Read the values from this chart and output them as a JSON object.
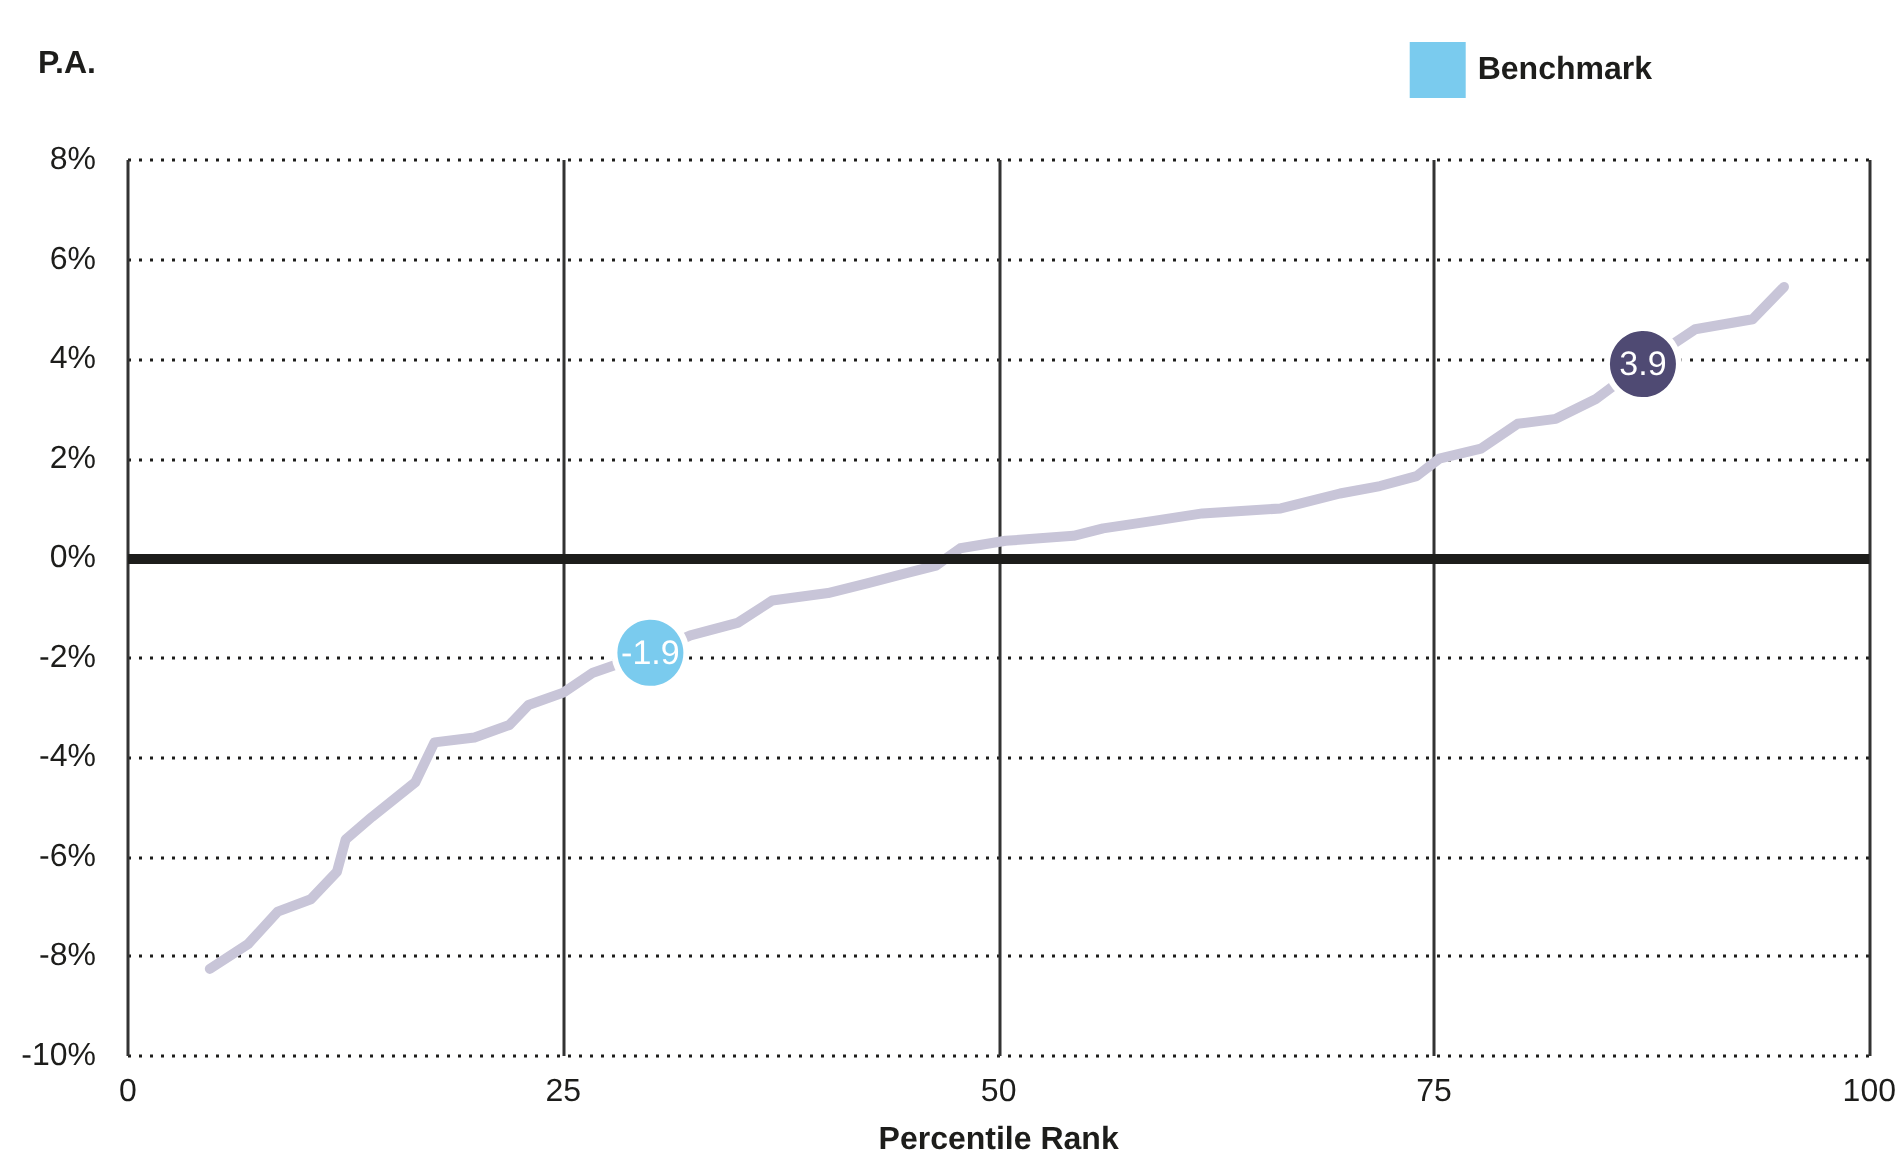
{
  "chart_data": {
    "type": "line",
    "ylabel": "P.A.",
    "xlabel": "Percentile Rank",
    "xlim": [
      0,
      100
    ],
    "xticks": [
      0,
      25,
      50,
      75,
      100
    ],
    "ylim": [
      -10,
      8
    ],
    "yticks": [
      {
        "value": -10,
        "label": "-10%"
      },
      {
        "value": -8,
        "label": "-8%"
      },
      {
        "value": -6,
        "label": "-6%"
      },
      {
        "value": -4,
        "label": "-4%"
      },
      {
        "value": -2,
        "label": "-2%"
      },
      {
        "value": 0,
        "label": "0%"
      },
      {
        "value": 2,
        "label": "2%"
      },
      {
        "value": 4,
        "label": "4%"
      },
      {
        "value": 6,
        "label": "6%"
      },
      {
        "value": 8,
        "label": "8%"
      }
    ],
    "grid": true,
    "legend": "top right",
    "line_style": "solid",
    "ref_lines": [
      {
        "axis": "y",
        "value": 0,
        "color": "#1d1d1b"
      }
    ],
    "series": [
      {
        "marker": "none",
        "color": "#c8c5d8",
        "x": [
          4.7,
          6.9,
          8.6,
          10.5,
          12,
          12.5,
          14,
          16.5,
          17.6,
          19.9,
          21.9,
          23,
          25,
          26.7,
          30,
          32.3,
          35,
          37,
          40.2,
          42.5,
          44.7,
          46.4,
          47.8,
          50.4,
          54.3,
          56,
          58.9,
          61.7,
          66.2,
          69.6,
          71.9,
          74,
          75.3,
          77.7,
          79.8,
          82,
          84.3,
          87,
          90,
          93.3,
          95.1
        ],
        "values": [
          -8.25,
          -7.75,
          -7.1,
          -6.85,
          -6.3,
          -5.65,
          -5.2,
          -4.5,
          -3.7,
          -3.6,
          -3.35,
          -2.95,
          -2.7,
          -2.3,
          -1.9,
          -1.55,
          -1.3,
          -0.85,
          -0.7,
          -0.5,
          -0.3,
          -0.15,
          0.2,
          0.35,
          0.45,
          0.6,
          0.75,
          0.9,
          1.0,
          1.3,
          1.45,
          1.65,
          2.0,
          2.2,
          2.7,
          2.8,
          3.2,
          3.9,
          4.6,
          4.8,
          5.45
        ]
      },
      {
        "type": "scatter",
        "marker": "circle",
        "name": "Benchmark",
        "color": "#7acbee",
        "x": [
          30
        ],
        "values": [
          -1.9
        ],
        "value_labels": [
          "-1.9"
        ]
      },
      {
        "type": "scatter",
        "marker": "circle",
        "color": "#4f4a73",
        "x": [
          87
        ],
        "values": [
          3.9
        ],
        "value_labels": [
          "3.9"
        ]
      }
    ]
  }
}
